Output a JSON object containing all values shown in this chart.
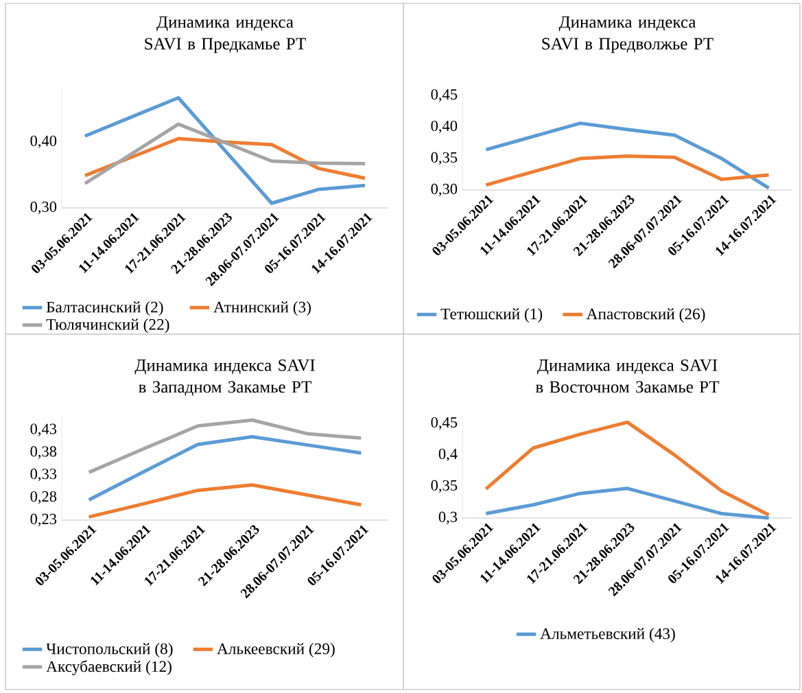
{
  "chart_data": [
    {
      "type": "line",
      "title": "Динамика индекса SAVI в Предкамье РТ",
      "categories": [
        "03-05.06.2021",
        "11-14.06.2021",
        "17-21.06.2021",
        "21-28.06.2023",
        "28.06-07.07.2021",
        "05-16.07.2021",
        "14-16.07.2021"
      ],
      "series": [
        {
          "name": "Балтасинский (2)",
          "color": "#5b9bd5",
          "values": [
            0.409,
            0.438,
            0.467,
            0.387,
            0.307,
            0.328,
            0.334
          ]
        },
        {
          "name": "Атнинский (3)",
          "color": "#ed7d31",
          "values": [
            0.349,
            0.377,
            0.405,
            0.4,
            0.396,
            0.36,
            0.345
          ]
        },
        {
          "name": "Тюлячинский (22)",
          "color": "#a5a5a5",
          "values": [
            0.337,
            0.382,
            0.427,
            0.399,
            0.371,
            0.368,
            0.367
          ]
        }
      ],
      "ylim": [
        0.3,
        0.48
      ],
      "yticks": [
        {
          "value": 0.3,
          "label": "0,30"
        },
        {
          "value": 0.4,
          "label": "0,40"
        }
      ],
      "legend": "bottom",
      "marker": "none"
    },
    {
      "type": "line",
      "title": "Динамика индекса SAVI в Предволжье РТ",
      "categories": [
        "03-05.06.2021",
        "11-14.06.2021",
        "17-21.06.2021",
        "21-28.06.2023",
        "28.06-07.07.2021",
        "05-16.07.2021",
        "14-16.07.2021"
      ],
      "series": [
        {
          "name": "Тетюшский (1)",
          "color": "#5b9bd5",
          "values": [
            0.364,
            0.385,
            0.406,
            0.396,
            0.387,
            0.35,
            0.303
          ]
        },
        {
          "name": "Апастовский (26)",
          "color": "#ed7d31",
          "values": [
            0.308,
            0.329,
            0.35,
            0.354,
            0.352,
            0.317,
            0.324
          ]
        }
      ],
      "ylim": [
        0.3,
        0.46
      ],
      "yticks": [
        {
          "value": 0.3,
          "label": "0,30"
        },
        {
          "value": 0.35,
          "label": "0,35"
        },
        {
          "value": 0.4,
          "label": "0,40"
        },
        {
          "value": 0.45,
          "label": "0,45"
        }
      ],
      "legend": "bottom",
      "marker": "none"
    },
    {
      "type": "line",
      "title": "Динамика индекса SAVI в Западном Закамье РТ",
      "categories": [
        "03-05.06.2021",
        "11-14.06.2021",
        "17-21.06.2021",
        "21-28.06.2023",
        "28.06-07.07.2021",
        "05-16.07.2021"
      ],
      "series": [
        {
          "name": "Чистопольский (8)",
          "color": "#5b9bd5",
          "values": [
            0.275,
            0.337,
            0.398,
            0.415,
            0.397,
            0.379
          ]
        },
        {
          "name": "Алькеевский (29)",
          "color": "#ed7d31",
          "values": [
            0.237,
            0.266,
            0.296,
            0.308,
            0.286,
            0.264
          ]
        },
        {
          "name": "Аксубаевский (12)",
          "color": "#a5a5a5",
          "values": [
            0.336,
            0.388,
            0.439,
            0.452,
            0.422,
            0.412
          ]
        }
      ],
      "ylim": [
        0.23,
        0.46
      ],
      "yticks": [
        {
          "value": 0.23,
          "label": "0,23"
        },
        {
          "value": 0.28,
          "label": "0,28"
        },
        {
          "value": 0.33,
          "label": "0,33"
        },
        {
          "value": 0.38,
          "label": "0,38"
        },
        {
          "value": 0.43,
          "label": "0,43"
        }
      ],
      "legend": "bottom",
      "marker": "none"
    },
    {
      "type": "line",
      "title": "Динамика индекса SAVI в Восточном Закамье РТ",
      "categories": [
        "03-05.06.2021",
        "11-14.06.2021",
        "17-21.06.2021",
        "21-28.06.2023",
        "28.06-07.07.2021",
        "05-16.07.2021",
        "14-16.07.2021"
      ],
      "series": [
        {
          "name": "Альметьевский (43)",
          "color": "#5b9bd5",
          "values": [
            0.307,
            0.321,
            0.339,
            0.347,
            0.327,
            0.307,
            0.3
          ]
        },
        {
          "color": "#ed7d31",
          "values": [
            0.346,
            0.411,
            0.433,
            0.452,
            0.4,
            0.343,
            0.305
          ]
        }
      ],
      "ylim": [
        0.3,
        0.46
      ],
      "yticks": [
        {
          "value": 0.3,
          "label": "0,3"
        },
        {
          "value": 0.35,
          "label": "0,35"
        },
        {
          "value": 0.4,
          "label": "0,4"
        },
        {
          "value": 0.45,
          "label": "0,45"
        }
      ],
      "legend": "bottom",
      "marker": "none"
    }
  ]
}
